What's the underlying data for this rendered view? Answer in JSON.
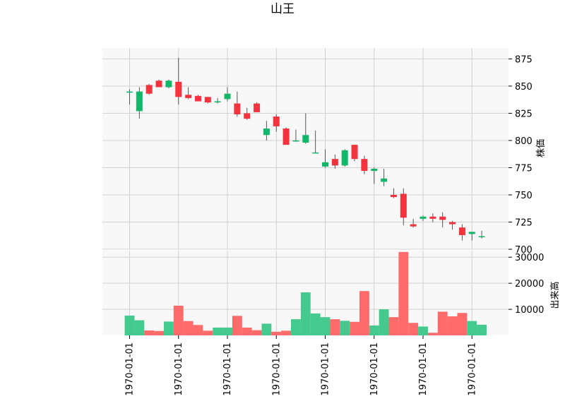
{
  "chart_data": {
    "type": "candlestick",
    "title": "山王",
    "x_tick_labels": [
      "1970-01-01",
      "1970-01-01",
      "1970-01-01",
      "1970-01-01",
      "1970-01-01",
      "1970-01-01",
      "1970-01-01",
      "1970-01-01"
    ],
    "x_tick_indices": [
      0,
      5,
      10,
      15,
      20,
      25,
      30,
      35
    ],
    "price_panel": {
      "ylabel": "株価",
      "ylim": [
        700,
        885
      ],
      "yticks": [
        700,
        725,
        750,
        775,
        800,
        825,
        850,
        875
      ],
      "grid": true
    },
    "volume_panel": {
      "ylabel": "出来高",
      "ylim": [
        0,
        32500
      ],
      "yticks": [
        10000,
        20000,
        30000
      ],
      "grid": true
    },
    "colors": {
      "up": "#12b76a",
      "down": "#f5333f",
      "wick": "#555555",
      "vol_up": "#44c98e",
      "vol_down": "#ff6b6b",
      "panel_bg": "#f8f8f8",
      "grid": "#d0d0d0"
    },
    "candles": [
      {
        "open": 844,
        "high": 847,
        "low": 833,
        "close": 845,
        "volume": 7600
      },
      {
        "open": 827,
        "high": 849,
        "low": 820,
        "close": 845,
        "volume": 5800
      },
      {
        "open": 851,
        "high": 852,
        "low": 842,
        "close": 843,
        "volume": 1900
      },
      {
        "open": 855,
        "high": 856,
        "low": 849,
        "close": 849,
        "volume": 1700
      },
      {
        "open": 849,
        "high": 856,
        "low": 848,
        "close": 855,
        "volume": 5300
      },
      {
        "open": 854,
        "high": 876,
        "low": 833,
        "close": 840,
        "volume": 11400
      },
      {
        "open": 842,
        "high": 849,
        "low": 838,
        "close": 839,
        "volume": 5500
      },
      {
        "open": 841,
        "high": 842,
        "low": 836,
        "close": 836,
        "volume": 4000
      },
      {
        "open": 840,
        "high": 840,
        "low": 834,
        "close": 835,
        "volume": 1800
      },
      {
        "open": 836,
        "high": 839,
        "low": 834,
        "close": 836,
        "volume": 3000
      },
      {
        "open": 838,
        "high": 849,
        "low": 836,
        "close": 843,
        "volume": 3000
      },
      {
        "open": 834,
        "high": 845,
        "low": 822,
        "close": 824,
        "volume": 7500
      },
      {
        "open": 825,
        "high": 830,
        "low": 819,
        "close": 820,
        "volume": 3000
      },
      {
        "open": 834,
        "high": 835,
        "low": 826,
        "close": 826,
        "volume": 2000
      },
      {
        "open": 805,
        "high": 818,
        "low": 800,
        "close": 811,
        "volume": 4500
      },
      {
        "open": 822,
        "high": 824,
        "low": 808,
        "close": 813,
        "volume": 1400
      },
      {
        "open": 811,
        "high": 812,
        "low": 796,
        "close": 796,
        "volume": 1800
      },
      {
        "open": 800,
        "high": 810,
        "low": 799,
        "close": 800,
        "volume": 6200
      },
      {
        "open": 798,
        "high": 825,
        "low": 797,
        "close": 805,
        "volume": 16500
      },
      {
        "open": 789,
        "high": 809,
        "low": 788,
        "close": 789,
        "volume": 8400
      },
      {
        "open": 776,
        "high": 792,
        "low": 775,
        "close": 780,
        "volume": 7000
      },
      {
        "open": 783,
        "high": 787,
        "low": 774,
        "close": 777,
        "volume": 6200
      },
      {
        "open": 777,
        "high": 792,
        "low": 776,
        "close": 791,
        "volume": 5600
      },
      {
        "open": 796,
        "high": 796,
        "low": 781,
        "close": 783,
        "volume": 5200
      },
      {
        "open": 783,
        "high": 786,
        "low": 769,
        "close": 772,
        "volume": 17000
      },
      {
        "open": 772,
        "high": 775,
        "low": 760,
        "close": 774,
        "volume": 3800
      },
      {
        "open": 762,
        "high": 774,
        "low": 758,
        "close": 765,
        "volume": 10000
      },
      {
        "open": 750,
        "high": 756,
        "low": 747,
        "close": 748,
        "volume": 7000
      },
      {
        "open": 751,
        "high": 756,
        "low": 722,
        "close": 729,
        "volume": 32000
      },
      {
        "open": 723,
        "high": 728,
        "low": 720,
        "close": 721,
        "volume": 4800
      },
      {
        "open": 728,
        "high": 731,
        "low": 726,
        "close": 730,
        "volume": 3400
      },
      {
        "open": 730,
        "high": 733,
        "low": 725,
        "close": 728,
        "volume": 1000
      },
      {
        "open": 730,
        "high": 734,
        "low": 720,
        "close": 727,
        "volume": 9100
      },
      {
        "open": 725,
        "high": 726,
        "low": 718,
        "close": 723,
        "volume": 7300
      },
      {
        "open": 720,
        "high": 723,
        "low": 708,
        "close": 713,
        "volume": 8600
      },
      {
        "open": 714,
        "high": 716,
        "low": 708,
        "close": 716,
        "volume": 5500
      },
      {
        "open": 711,
        "high": 717,
        "low": 710,
        "close": 712,
        "volume": 4100
      }
    ]
  }
}
